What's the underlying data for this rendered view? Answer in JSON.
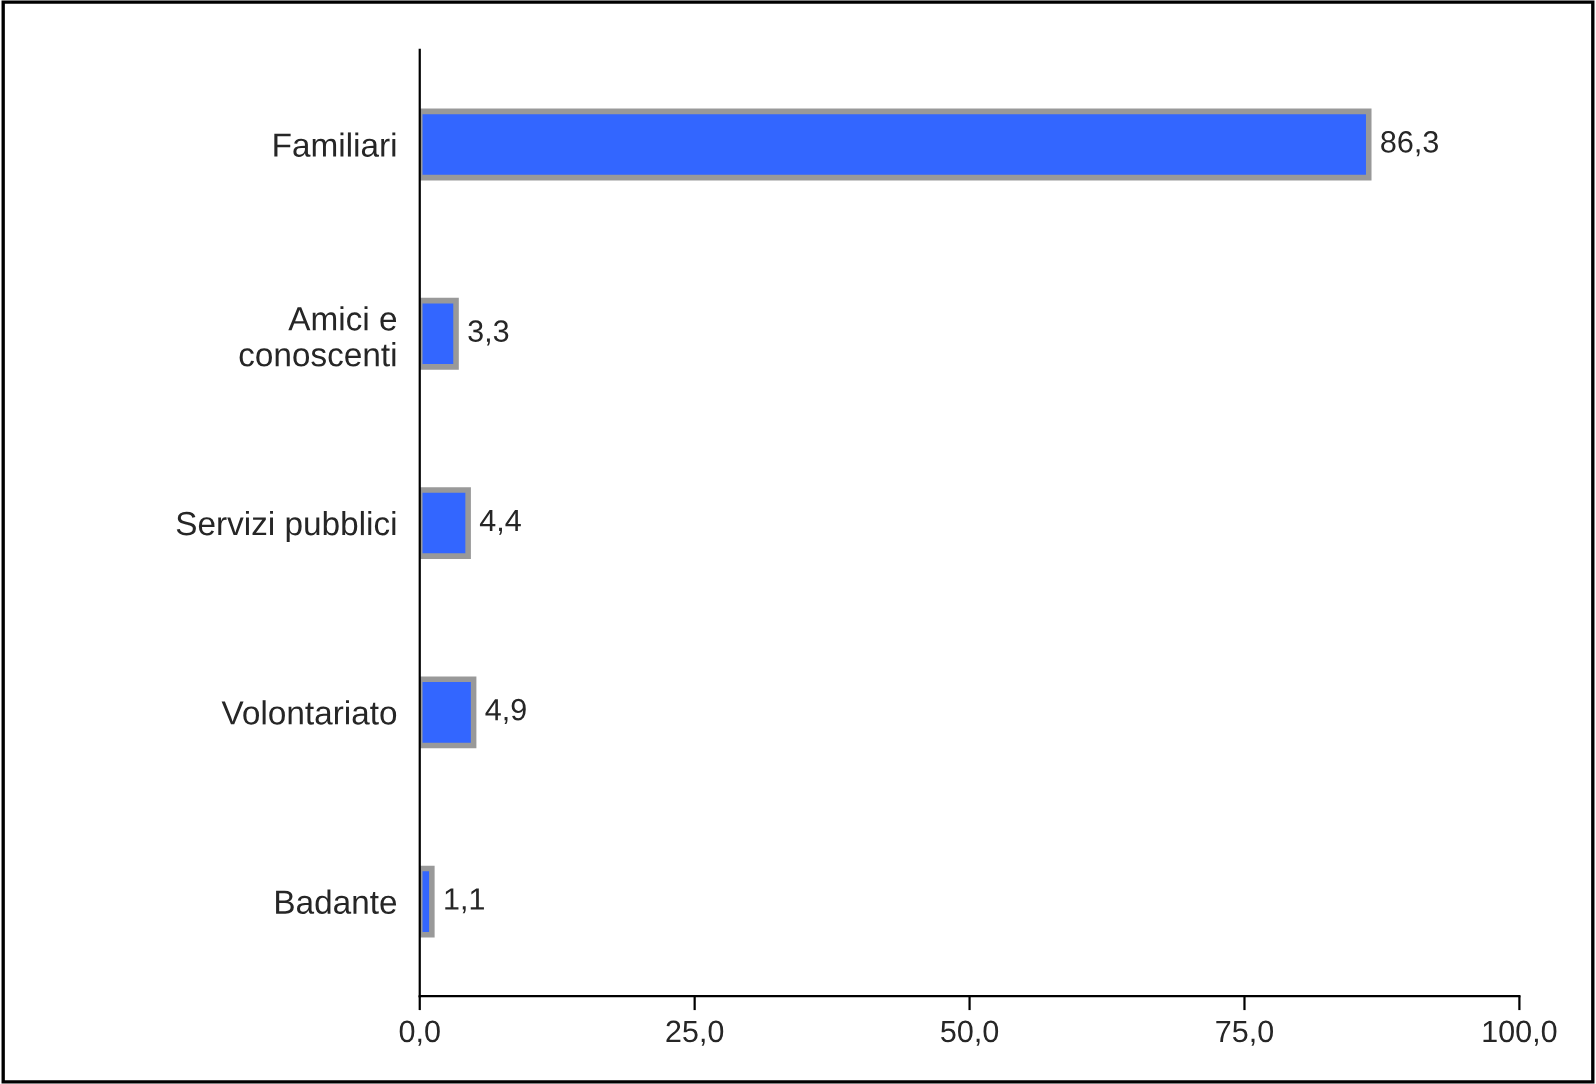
{
  "chart_data": {
    "type": "bar",
    "orientation": "horizontal",
    "categories": [
      "Familiari",
      "Amici e\nconoscenti",
      "Servizi pubblici",
      "Volontariato",
      "Badante"
    ],
    "values": [
      86.3,
      3.3,
      4.4,
      4.9,
      1.1
    ],
    "value_labels": [
      "86,3",
      "3,3",
      "4,4",
      "4,9",
      "1,1"
    ],
    "color": "#3366ff",
    "xlim": [
      0,
      100
    ],
    "xticks": [
      {
        "value": 0,
        "label": "0,0"
      },
      {
        "value": 25,
        "label": "25,0"
      },
      {
        "value": 50,
        "label": "50,0"
      },
      {
        "value": 75,
        "label": "75,0"
      },
      {
        "value": 100,
        "label": "100,0"
      }
    ],
    "grid": false,
    "legend": false
  }
}
